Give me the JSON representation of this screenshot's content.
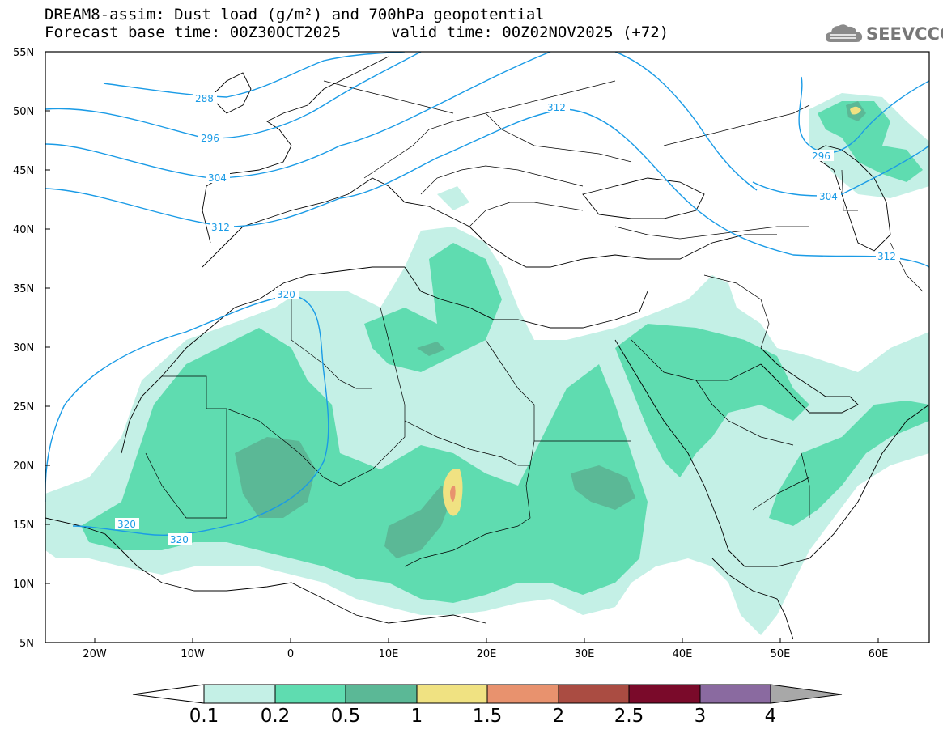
{
  "header": {
    "title_line1": "DREAM8-assim: Dust load (g/m²) and 700hPa geopotential",
    "title_line2_base": "Forecast base time: 00Z30OCT2025",
    "title_line2_valid": "valid time: 00Z02NOV2025 (+72)"
  },
  "logo": {
    "text": "SEEVCCC",
    "icon": "cloud-icon"
  },
  "map": {
    "lat_labels": [
      "55N",
      "50N",
      "45N",
      "40N",
      "35N",
      "30N",
      "25N",
      "20N",
      "15N",
      "10N",
      "5N"
    ],
    "lon_labels": [
      "20W",
      "10W",
      "0",
      "10E",
      "20E",
      "30E",
      "40E",
      "50E",
      "60E"
    ],
    "contour_labels": [
      "288",
      "296",
      "304",
      "312",
      "312",
      "296",
      "304",
      "312",
      "320",
      "320",
      "320"
    ],
    "contour_color": "#1a9be6"
  },
  "colorbar": {
    "ticks": [
      "0.1",
      "0.2",
      "0.5",
      "1",
      "1.5",
      "2",
      "2.5",
      "3",
      "4"
    ],
    "colors": [
      "#c4f0e6",
      "#5fdcb0",
      "#5bb896",
      "#f0e282",
      "#e8926e",
      "#aa4c42",
      "#7a0a2a",
      "#8a6aa0"
    ],
    "low_arrow_color": "#ffffff",
    "high_arrow_color": "#a8a8a8"
  },
  "dust_colors": {
    "low": "#c4f0e6",
    "mid": "#5fdcb0",
    "high": "#5bb896",
    "peak1": "#f0e282",
    "peak2": "#e8926e"
  }
}
